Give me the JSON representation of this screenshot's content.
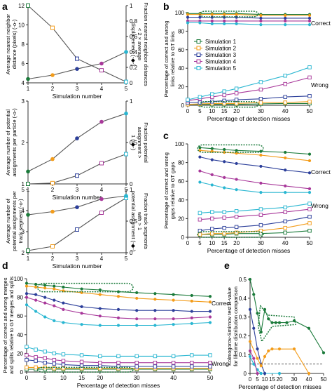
{
  "panel_letters": [
    "a",
    "b",
    "c",
    "d",
    "e"
  ],
  "colors": {
    "sim1": "#1a7a3a",
    "sim2": "#f39c1a",
    "sim3": "#2c3f9a",
    "sim4": "#a8389a",
    "sim5": "#29b6d1",
    "axis": "#333333",
    "gray_line": "#555555"
  },
  "chart_data": [
    {
      "id": "a1",
      "type": "line",
      "xlabel": "Simulation number",
      "ylabel": "Average nearest neighbor distance (pixels) (-o-)",
      "ylabel_right": "Fraction nearest neighbor distances < 2 × average displacement (-◆-)",
      "x": [
        1,
        2,
        3,
        4,
        5
      ],
      "xlim": [
        1,
        5
      ],
      "ylim": [
        4,
        12
      ],
      "ylim_right": [
        0,
        1
      ],
      "yticks": [
        4,
        6,
        8,
        10,
        12
      ],
      "yticks_right": [
        0,
        0.2,
        0.4,
        0.6,
        0.8,
        1
      ],
      "left_values": [
        12,
        9.7,
        6.5,
        5.3,
        4.1
      ],
      "right_values": [
        0.05,
        0.1,
        0.18,
        0.25,
        0.4
      ]
    },
    {
      "id": "a2",
      "type": "line",
      "xlabel": "Simulation number",
      "ylabel": "Average number of potential assignments per particle (-o-)",
      "ylabel_right": "Fraction potential assignment > 1 (-◆-)",
      "x": [
        1,
        2,
        3,
        4,
        5
      ],
      "xlim": [
        1,
        5
      ],
      "ylim": [
        1,
        3
      ],
      "ylim_right": [
        0,
        1
      ],
      "yticks": [
        1,
        2,
        3
      ],
      "yticks_right": [
        0,
        0.5,
        1
      ],
      "left_values": [
        1,
        1.02,
        1.2,
        1.5,
        1.72
      ],
      "right_values": [
        0.15,
        0.3,
        0.55,
        0.75,
        0.85
      ]
    },
    {
      "id": "a3",
      "type": "line",
      "xlabel": "Simulation number",
      "ylabel": "Average number of potential assignments per track segment (-o-)",
      "ylabel_right": "Fraction track segments with > 1 potential assignment (-◆-)",
      "x": [
        1,
        2,
        3,
        4,
        5
      ],
      "xlim": [
        1,
        5
      ],
      "ylim": [
        2,
        5
      ],
      "ylim_right": [
        0,
        1
      ],
      "yticks": [
        2,
        3,
        4,
        5
      ],
      "yticks_right": [
        0,
        0.5,
        1
      ],
      "left_values": [
        2.1,
        2.3,
        3.1,
        3.9,
        4.6
      ],
      "right_values": [
        0.6,
        0.65,
        0.72,
        0.85,
        0.9
      ]
    },
    {
      "id": "b",
      "type": "line",
      "xlabel": "Percentage of detection misses",
      "ylabel": "Percentage of correct and wrong links relative to GT links",
      "xlim": [
        0,
        50
      ],
      "ylim": [
        0,
        100
      ],
      "xticks": [
        0,
        5,
        10,
        15,
        20,
        30,
        40,
        50
      ],
      "yticks": [
        0,
        20,
        40,
        60,
        80,
        100
      ],
      "x": [
        0,
        5,
        10,
        15,
        20,
        30,
        40,
        50
      ],
      "annotations": [
        "Correct",
        "Wrong"
      ],
      "legend": [
        "Simulation 1",
        "Simulation 2",
        "Simulation 3",
        "Simulation 4",
        "Simulation 5"
      ],
      "series": [
        {
          "name": "Simulation 1",
          "color_key": "sim1",
          "correct": [
            99,
            99,
            99,
            99,
            99,
            98,
            98,
            98
          ],
          "wrong": [
            1,
            1,
            1,
            1,
            1,
            1.5,
            2,
            2
          ]
        },
        {
          "name": "Simulation 2",
          "color_key": "sim2",
          "correct": [
            98,
            98,
            98,
            98,
            98,
            97,
            97,
            97
          ],
          "wrong": [
            1,
            1.5,
            2,
            2,
            2,
            3,
            3,
            4
          ]
        },
        {
          "name": "Simulation 3",
          "color_key": "sim3",
          "correct": [
            95,
            95,
            95,
            95,
            95,
            94,
            94,
            94
          ],
          "wrong": [
            3,
            3,
            4,
            5,
            6,
            7,
            9,
            10
          ]
        },
        {
          "name": "Simulation 4",
          "color_key": "sim4",
          "correct": [
            91,
            91,
            91,
            91,
            91,
            91,
            91,
            91
          ],
          "wrong": [
            5,
            7,
            9,
            11,
            13,
            17,
            23,
            30
          ]
        },
        {
          "name": "Simulation 5",
          "color_key": "sim5",
          "correct": [
            89,
            89,
            88,
            88,
            88,
            87,
            87,
            87
          ],
          "wrong": [
            6,
            9,
            12,
            15,
            18,
            25,
            32,
            41
          ]
        }
      ]
    },
    {
      "id": "c",
      "type": "line",
      "xlabel": "Percentage of detection misses",
      "ylabel": "Percentage of correct and wrong gaps relative to GT gaps",
      "xlim": [
        0,
        50
      ],
      "ylim": [
        0,
        100
      ],
      "xticks": [
        0,
        5,
        10,
        15,
        20,
        30,
        40,
        50
      ],
      "yticks": [
        0,
        20,
        40,
        60,
        80,
        100
      ],
      "x": [
        5,
        10,
        15,
        20,
        30,
        40,
        50
      ],
      "annotations": [
        "Correct",
        "Wrong"
      ],
      "series": [
        {
          "name": "Simulation 1",
          "color_key": "sim1",
          "correct": [
            96,
            95,
            94,
            93,
            92,
            91,
            89
          ],
          "wrong": [
            3,
            3,
            3,
            4,
            4,
            5,
            7
          ]
        },
        {
          "name": "Simulation 2",
          "color_key": "sim2",
          "correct": [
            93,
            92,
            91,
            90,
            88,
            85,
            82
          ],
          "wrong": [
            3,
            4,
            4,
            5,
            7,
            10,
            15
          ]
        },
        {
          "name": "Simulation 3",
          "color_key": "sim3",
          "correct": [
            86,
            83,
            81,
            79,
            76,
            72,
            69
          ],
          "wrong": [
            7,
            9,
            10,
            11,
            13,
            17,
            22
          ]
        },
        {
          "name": "Simulation 4",
          "color_key": "sim4",
          "correct": [
            71,
            67,
            64,
            62,
            58,
            55,
            52
          ],
          "wrong": [
            19,
            20,
            21,
            22,
            24,
            27,
            30
          ]
        },
        {
          "name": "Simulation 5",
          "color_key": "sim5",
          "correct": [
            59,
            56,
            53,
            51,
            48,
            48,
            48
          ],
          "wrong": [
            26,
            27,
            27,
            28,
            30,
            32,
            36
          ]
        }
      ]
    },
    {
      "id": "d",
      "type": "line",
      "xlabel": "Percentage of detection misses",
      "ylabel": "Percentage of correct and wrong merges and splits relative to GT merges and splits",
      "xlim": [
        0,
        50
      ],
      "ylim": [
        0,
        100
      ],
      "xticks": [
        0,
        5,
        10,
        15,
        20,
        30,
        40,
        50
      ],
      "yticks": [
        0,
        20,
        40,
        60,
        80,
        100
      ],
      "x": [
        0,
        2.5,
        5,
        7.5,
        10,
        15,
        20,
        25,
        30,
        35,
        40,
        45,
        50
      ],
      "annotations": [
        "Correct",
        "Wrong"
      ],
      "series": [
        {
          "name": "Simulation 1",
          "color_key": "sim1",
          "correct": [
            95,
            94,
            93,
            92,
            91,
            89,
            88,
            86,
            85,
            84,
            83,
            82,
            81
          ],
          "wrong": [
            3,
            3,
            3,
            3,
            3,
            3,
            3,
            3,
            3,
            3,
            3,
            3,
            3
          ]
        },
        {
          "name": "Simulation 2",
          "color_key": "sim2",
          "correct": [
            92,
            91,
            90,
            89,
            87,
            85,
            83,
            81,
            79,
            78,
            77,
            76,
            75
          ],
          "wrong": [
            5,
            5,
            5,
            4,
            4,
            4,
            4,
            4,
            4,
            4,
            4,
            4,
            4
          ]
        },
        {
          "name": "Simulation 3",
          "color_key": "sim3",
          "correct": [
            84,
            83,
            80,
            77,
            74,
            70,
            68,
            67,
            66,
            66,
            66,
            65,
            65
          ],
          "wrong": [
            13,
            12,
            10,
            9,
            8,
            7,
            7,
            6,
            6,
            6,
            6,
            6,
            6
          ]
        },
        {
          "name": "Simulation 4",
          "color_key": "sim4",
          "correct": [
            80,
            77,
            74,
            71,
            67,
            63,
            60,
            58,
            57,
            57,
            57,
            58,
            59
          ],
          "wrong": [
            18,
            16,
            15,
            13,
            12,
            11,
            10,
            10,
            10,
            10,
            10,
            10,
            10
          ]
        },
        {
          "name": "Simulation 5",
          "color_key": "sim5",
          "correct": [
            72,
            65,
            59,
            55,
            53,
            51,
            50,
            50,
            50,
            50,
            51,
            52,
            53
          ],
          "wrong": [
            27,
            24,
            22,
            20,
            19,
            18,
            17,
            17,
            17,
            17,
            17,
            18,
            18
          ]
        }
      ]
    },
    {
      "id": "e",
      "type": "line",
      "xlabel": "Percentage of detection misses",
      "ylabel": "Kolmogorov-Smirnov test P-value for lifetime distribution comparison",
      "xlim": [
        0,
        50
      ],
      "ylim": [
        0,
        0.5
      ],
      "xticks": [
        0,
        5,
        10,
        15,
        20,
        30,
        40,
        50
      ],
      "yticks": [
        0,
        0.1,
        0.2,
        0.3,
        0.4,
        0.5
      ],
      "threshold": 0.05,
      "series": [
        {
          "name": "Simulation 1",
          "color_key": "sim1",
          "x": [
            0,
            2.5,
            5,
            7.5,
            10,
            12.5,
            15,
            17.5,
            20,
            25,
            30,
            40,
            50
          ],
          "values": [
            0.5,
            0.42,
            0.32,
            0.22,
            0.34,
            0.29,
            0.27,
            0.27,
            0.27,
            0.27,
            0.28,
            0.24,
            0.11
          ]
        },
        {
          "name": "Simulation 2",
          "color_key": "sim2",
          "x": [
            0,
            5,
            7.5,
            10,
            12.5,
            15,
            20,
            30,
            40
          ],
          "values": [
            0.17,
            0.08,
            0.04,
            0.09,
            0.12,
            0.13,
            0.13,
            0.13,
            0
          ]
        },
        {
          "name": "Simulation 3",
          "color_key": "sim3",
          "x": [
            0,
            2.5,
            5,
            7.5,
            10
          ],
          "values": [
            0.34,
            0.24,
            0.13,
            0.05,
            0
          ]
        },
        {
          "name": "Simulation 4",
          "color_key": "sim4",
          "x": [
            0,
            2.5,
            5
          ],
          "values": [
            0.12,
            0.08,
            0
          ]
        },
        {
          "name": "Simulation 5",
          "color_key": "sim5",
          "x": [
            0,
            2.5,
            5,
            7.5,
            10,
            20
          ],
          "values": [
            0.09,
            0.05,
            0.02,
            0,
            0,
            0
          ]
        }
      ]
    }
  ]
}
